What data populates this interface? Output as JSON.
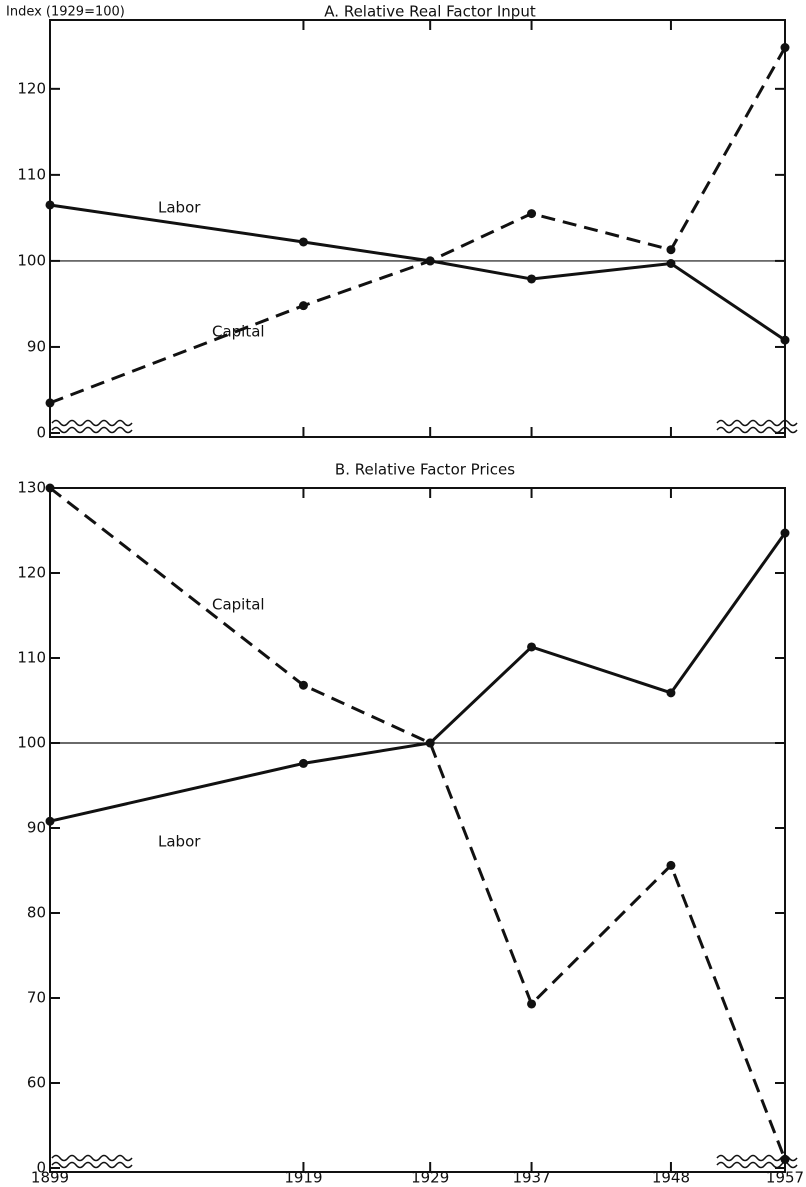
{
  "chart_data": [
    {
      "type": "line",
      "title": "A.  Relative Real Factor Input",
      "ylabel": "Index (1929=100)",
      "x": [
        1899,
        1919,
        1929,
        1937,
        1948,
        1957
      ],
      "series": [
        {
          "name": "Labor",
          "color": "#111111",
          "dash": false,
          "values": [
            106.5,
            102.2,
            100,
            97.9,
            99.7,
            90.8
          ]
        },
        {
          "name": "Capital",
          "color": "#111111",
          "dash": true,
          "values": [
            83.5,
            94.8,
            100,
            105.5,
            101.3,
            124.8
          ]
        }
      ],
      "xlim": [
        1899,
        1957
      ],
      "xticks": [
        1899,
        1919,
        1929,
        1937,
        1948,
        1957
      ],
      "xtick_labels": false,
      "ylim": [
        0,
        128
      ],
      "yticks": [
        0,
        90,
        100,
        110,
        120
      ],
      "axis_break": [
        0,
        80
      ],
      "reference_line": 100
    },
    {
      "type": "line",
      "title": "B.  Relative Factor Prices",
      "x": [
        1899,
        1919,
        1929,
        1937,
        1948,
        1957
      ],
      "series": [
        {
          "name": "Labor",
          "color": "#111111",
          "dash": false,
          "values": [
            90.8,
            97.6,
            100,
            111.3,
            105.9,
            124.7
          ]
        },
        {
          "name": "Capital",
          "color": "#111111",
          "dash": true,
          "values": [
            130,
            106.8,
            100,
            69.3,
            85.6,
            51
          ]
        }
      ],
      "xlim": [
        1899,
        1957
      ],
      "xticks": [
        1899,
        1919,
        1929,
        1937,
        1948,
        1957
      ],
      "xtick_labels": true,
      "ylim": [
        0,
        130
      ],
      "yticks": [
        0,
        60,
        70,
        80,
        90,
        100,
        110,
        120,
        130
      ],
      "axis_break": [
        0,
        50
      ],
      "reference_line": 100
    }
  ]
}
